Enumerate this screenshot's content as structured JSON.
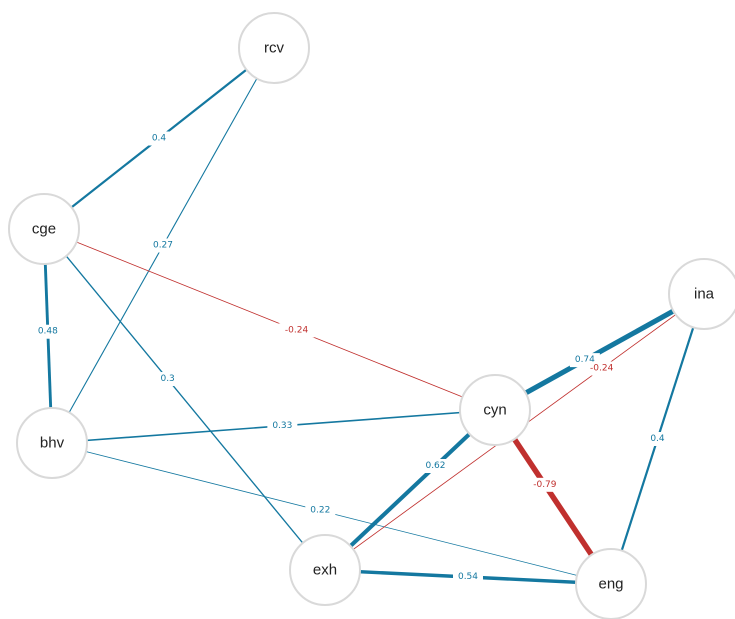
{
  "colors": {
    "positive": "#1478a0",
    "negative": "#c0302e"
  },
  "nodes": [
    {
      "id": "rcv",
      "label": "rcv"
    },
    {
      "id": "cge",
      "label": "cge"
    },
    {
      "id": "bhv",
      "label": "bhv"
    },
    {
      "id": "ina",
      "label": "ina"
    },
    {
      "id": "cyn",
      "label": "cyn"
    },
    {
      "id": "exh",
      "label": "exh"
    },
    {
      "id": "eng",
      "label": "eng"
    }
  ],
  "edges": [
    {
      "from": "rcv",
      "to": "cge",
      "weight": 0.4,
      "label": "0.4"
    },
    {
      "from": "rcv",
      "to": "bhv",
      "weight": 0.27,
      "label": "0.27"
    },
    {
      "from": "cge",
      "to": "bhv",
      "weight": 0.48,
      "label": "0.48"
    },
    {
      "from": "cge",
      "to": "cyn",
      "weight": -0.24,
      "label": "-0.24"
    },
    {
      "from": "cge",
      "to": "exh",
      "weight": 0.3,
      "label": "0.3"
    },
    {
      "from": "bhv",
      "to": "cyn",
      "weight": 0.33,
      "label": "0.33"
    },
    {
      "from": "bhv",
      "to": "eng",
      "weight": 0.22,
      "label": "0.22"
    },
    {
      "from": "ina",
      "to": "cyn",
      "weight": 0.74,
      "label": "0.74"
    },
    {
      "from": "ina",
      "to": "exh",
      "weight": -0.24,
      "label": "-0.24"
    },
    {
      "from": "ina",
      "to": "eng",
      "weight": 0.4,
      "label": "0.4"
    },
    {
      "from": "cyn",
      "to": "exh",
      "weight": 0.62,
      "label": "0.62"
    },
    {
      "from": "cyn",
      "to": "eng",
      "weight": -0.79,
      "label": "-0.79"
    },
    {
      "from": "exh",
      "to": "eng",
      "weight": 0.54,
      "label": "0.54"
    }
  ]
}
